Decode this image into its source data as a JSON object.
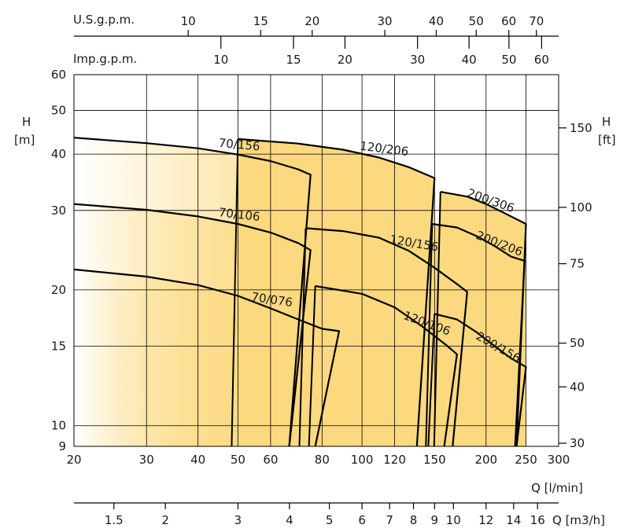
{
  "chart_data": {
    "type": "line",
    "title": "",
    "x_axis": {
      "label": "Q [l/min]",
      "scale": "log",
      "range": [
        20,
        300
      ],
      "ticks": [
        20,
        30,
        40,
        50,
        60,
        80,
        100,
        120,
        150,
        200,
        250,
        300
      ]
    },
    "x_axis_secondary": {
      "label": "Q [m3/h]",
      "ticks": [
        1.5,
        2,
        3,
        4,
        5,
        6,
        7,
        8,
        9,
        10,
        12,
        14,
        16
      ]
    },
    "top_axis_us": {
      "label": "U.S.g.p.m.",
      "ticks": [
        10,
        15,
        20,
        30,
        40,
        50,
        60,
        70
      ]
    },
    "top_axis_imp": {
      "label": "Imp.g.p.m.",
      "ticks": [
        10,
        15,
        20,
        30,
        40,
        50,
        60
      ]
    },
    "y_axis": {
      "label": "H",
      "unit": "[m]",
      "scale": "log",
      "range": [
        9,
        60
      ],
      "ticks": [
        9,
        10,
        15,
        20,
        30,
        40,
        50,
        60
      ]
    },
    "y_axis_right": {
      "label": "H",
      "unit": "[ft]",
      "ticks": [
        30,
        40,
        50,
        75,
        100,
        150
      ]
    },
    "grid": true,
    "fill_color": "#fcd97e",
    "series": [
      {
        "name": "70/156",
        "points": [
          [
            20,
            43.5
          ],
          [
            30,
            42.3
          ],
          [
            40,
            41.2
          ],
          [
            50,
            39.9
          ],
          [
            60,
            38.6
          ],
          [
            70,
            37.0
          ],
          [
            75,
            36.0
          ]
        ]
      },
      {
        "name": "70/106",
        "points": [
          [
            20,
            31.0
          ],
          [
            30,
            30.1
          ],
          [
            40,
            29.1
          ],
          [
            50,
            28.0
          ],
          [
            60,
            26.8
          ],
          [
            70,
            25.4
          ],
          [
            75,
            24.5
          ]
        ]
      },
      {
        "name": "70/076",
        "points": [
          [
            20,
            22.2
          ],
          [
            30,
            21.4
          ],
          [
            40,
            20.5
          ],
          [
            50,
            19.4
          ],
          [
            60,
            18.2
          ],
          [
            70,
            17.2
          ],
          [
            80,
            16.4
          ],
          [
            88,
            16.2
          ]
        ]
      },
      {
        "name": "120/206",
        "points": [
          [
            50,
            43.2
          ],
          [
            70,
            42.2
          ],
          [
            90,
            40.9
          ],
          [
            110,
            39.3
          ],
          [
            130,
            37.4
          ],
          [
            150,
            35.4
          ]
        ]
      },
      {
        "name": "120/156",
        "points": [
          [
            73,
            27.4
          ],
          [
            90,
            27.0
          ],
          [
            110,
            26.1
          ],
          [
            130,
            24.4
          ],
          [
            150,
            22.4
          ],
          [
            170,
            20.6
          ],
          [
            180,
            19.8
          ]
        ]
      },
      {
        "name": "120/106",
        "points": [
          [
            77,
            20.4
          ],
          [
            100,
            19.6
          ],
          [
            120,
            18.3
          ],
          [
            140,
            16.6
          ],
          [
            160,
            15.1
          ],
          [
            170,
            14.4
          ]
        ]
      },
      {
        "name": "200/306",
        "points": [
          [
            155,
            33.0
          ],
          [
            180,
            32.2
          ],
          [
            200,
            31.0
          ],
          [
            220,
            29.7
          ],
          [
            250,
            28.0
          ]
        ]
      },
      {
        "name": "200/206",
        "points": [
          [
            148,
            28.0
          ],
          [
            170,
            27.5
          ],
          [
            190,
            26.3
          ],
          [
            210,
            25.0
          ],
          [
            230,
            23.7
          ],
          [
            248,
            23.2
          ]
        ]
      },
      {
        "name": "200/156",
        "points": [
          [
            150,
            17.7
          ],
          [
            170,
            17.2
          ],
          [
            190,
            16.1
          ],
          [
            210,
            15.0
          ],
          [
            230,
            14.1
          ],
          [
            250,
            13.5
          ]
        ]
      }
    ]
  }
}
